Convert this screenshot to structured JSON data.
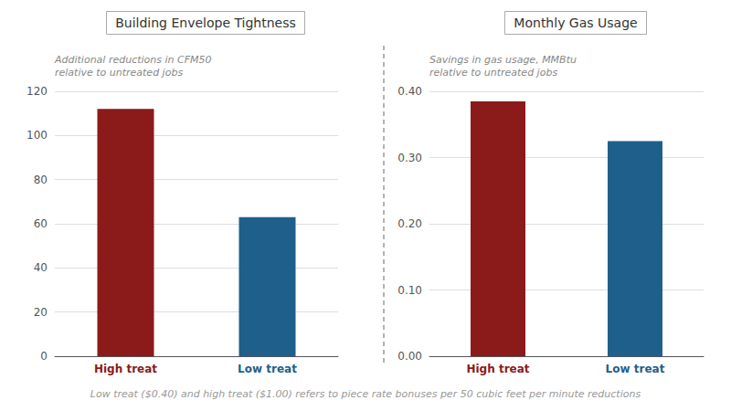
{
  "chart_data": [
    {
      "type": "bar",
      "title": "Building Envelope Tightness",
      "ylabel": "Additional reductions in CFM50\nrelative to untreated jobs",
      "categories": [
        "High treat",
        "Low treat"
      ],
      "values": [
        112,
        63
      ],
      "colors": [
        "#8B1A1A",
        "#1F5F8B"
      ],
      "ylim": [
        0,
        120
      ],
      "yticks": [
        0,
        20,
        40,
        60,
        80,
        100,
        120
      ],
      "grid": true
    },
    {
      "type": "bar",
      "title": "Monthly Gas Usage",
      "ylabel": "Savings in gas usage, MMBtu\nrelative to untreated jobs",
      "categories": [
        "High treat",
        "Low treat"
      ],
      "values": [
        0.385,
        0.325
      ],
      "colors": [
        "#8B1A1A",
        "#1F5F8B"
      ],
      "ylim": [
        0,
        0.4
      ],
      "yticks": [
        {
          "value": 0,
          "label": "0.00"
        },
        {
          "value": 0.1,
          "label": "0.10"
        },
        {
          "value": 0.2,
          "label": "0.20"
        },
        {
          "value": 0.3,
          "label": "0.30"
        },
        {
          "value": 0.4,
          "label": "0.40"
        }
      ],
      "grid": true
    }
  ],
  "caption": "Low treat ($0.40) and high treat ($1.00) refers to piece rate bonuses per 50 cubic feet per minute reductions"
}
